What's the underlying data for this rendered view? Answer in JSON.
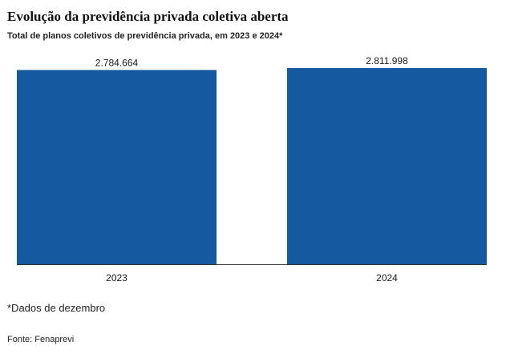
{
  "header": {
    "title": "Evolução da previdência privada coletiva aberta",
    "subtitle": "Total de planos coletivos de previdência privada, em 2023 e 2024*"
  },
  "footer": {
    "note": "*Dados de dezembro",
    "source": "Fonte: Fenaprevi"
  },
  "colors": {
    "bar": "#155aa1",
    "axis": "#333333"
  },
  "chart_data": {
    "type": "bar",
    "categories": [
      "2023",
      "2024"
    ],
    "values": [
      2784664,
      2811998
    ],
    "value_labels": [
      "2.784.664",
      "2.811.998"
    ],
    "title": "Evolução da previdência privada coletiva aberta",
    "subtitle": "Total de planos coletivos de previdência privada, em 2023 e 2024*",
    "xlabel": "",
    "ylabel": "",
    "ylim": [
      0,
      2811998
    ],
    "grid": false,
    "legend": "none"
  }
}
